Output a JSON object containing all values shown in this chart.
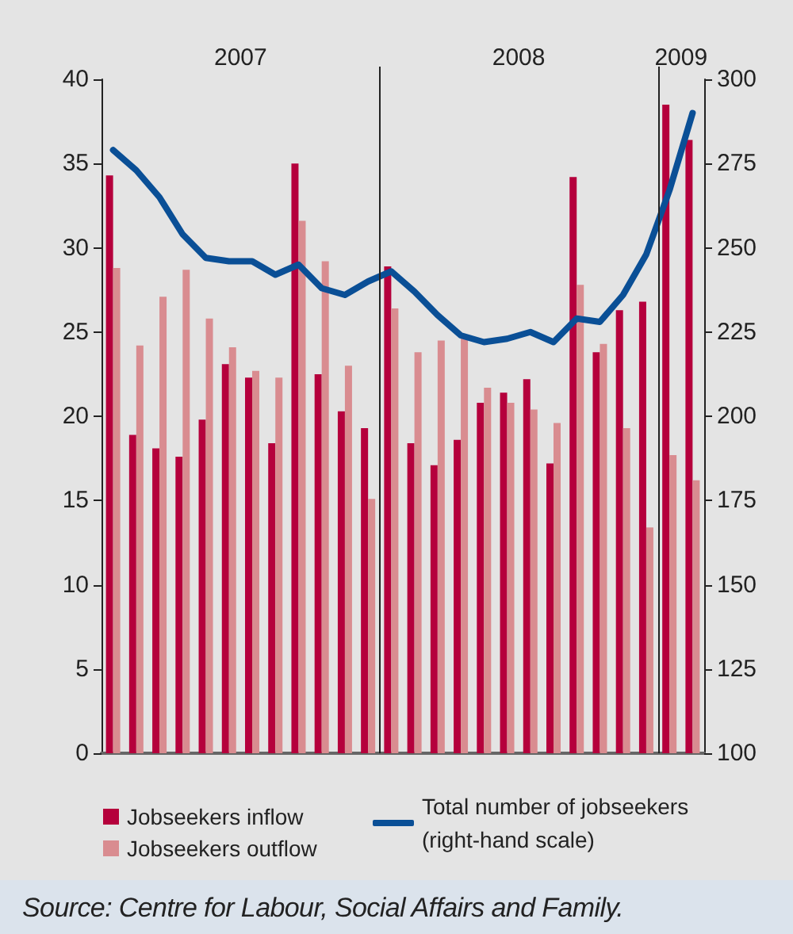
{
  "chart_data": {
    "type": "bar",
    "categories": [
      null,
      null,
      null,
      null,
      null,
      null,
      null,
      null,
      null,
      null,
      null,
      null,
      null,
      null,
      null,
      null,
      null,
      null,
      null,
      null,
      null,
      null,
      null,
      null,
      null,
      null
    ],
    "series": [
      {
        "name": "Jobseekers inflow",
        "color": "#b5003c",
        "values": [
          34.3,
          18.9,
          18.1,
          17.6,
          19.8,
          23.1,
          22.3,
          18.4,
          35.0,
          22.5,
          20.3,
          19.3,
          28.9,
          18.4,
          17.1,
          18.6,
          20.8,
          21.4,
          22.2,
          17.2,
          34.2,
          23.8,
          26.3,
          26.8,
          38.5,
          36.4
        ]
      },
      {
        "name": "Jobseekers outflow",
        "color": "#d98c90",
        "values": [
          28.8,
          24.2,
          27.1,
          28.7,
          25.8,
          24.1,
          22.7,
          22.3,
          31.6,
          29.2,
          23.0,
          15.1,
          26.4,
          23.8,
          24.5,
          24.8,
          21.7,
          20.8,
          20.4,
          19.6,
          27.8,
          24.3,
          19.3,
          13.4,
          17.7,
          16.2
        ]
      },
      {
        "name": "Total number of jobseekers (right-hand scale)",
        "type": "line",
        "axis": "y2",
        "color": "#0a4f96",
        "values": [
          279,
          273,
          265,
          254,
          247,
          246,
          246,
          242,
          245,
          238,
          236,
          240,
          243,
          237,
          230,
          224,
          222,
          223,
          225,
          222,
          229,
          228,
          236,
          248,
          267,
          290
        ]
      }
    ],
    "ylim": [
      0,
      40
    ],
    "yticks": [
      0,
      5,
      10,
      15,
      20,
      25,
      30,
      35,
      40
    ],
    "y2lim": [
      100,
      300
    ],
    "y2ticks": [
      100,
      125,
      150,
      175,
      200,
      225,
      250,
      275,
      300
    ],
    "grid": false,
    "legend": "bottom",
    "marker": "none",
    "line_style": "solid",
    "annotations": [
      "2007",
      "2008",
      "2009",
      "Source: Centre for Labour, Social Affairs and Family."
    ]
  }
}
